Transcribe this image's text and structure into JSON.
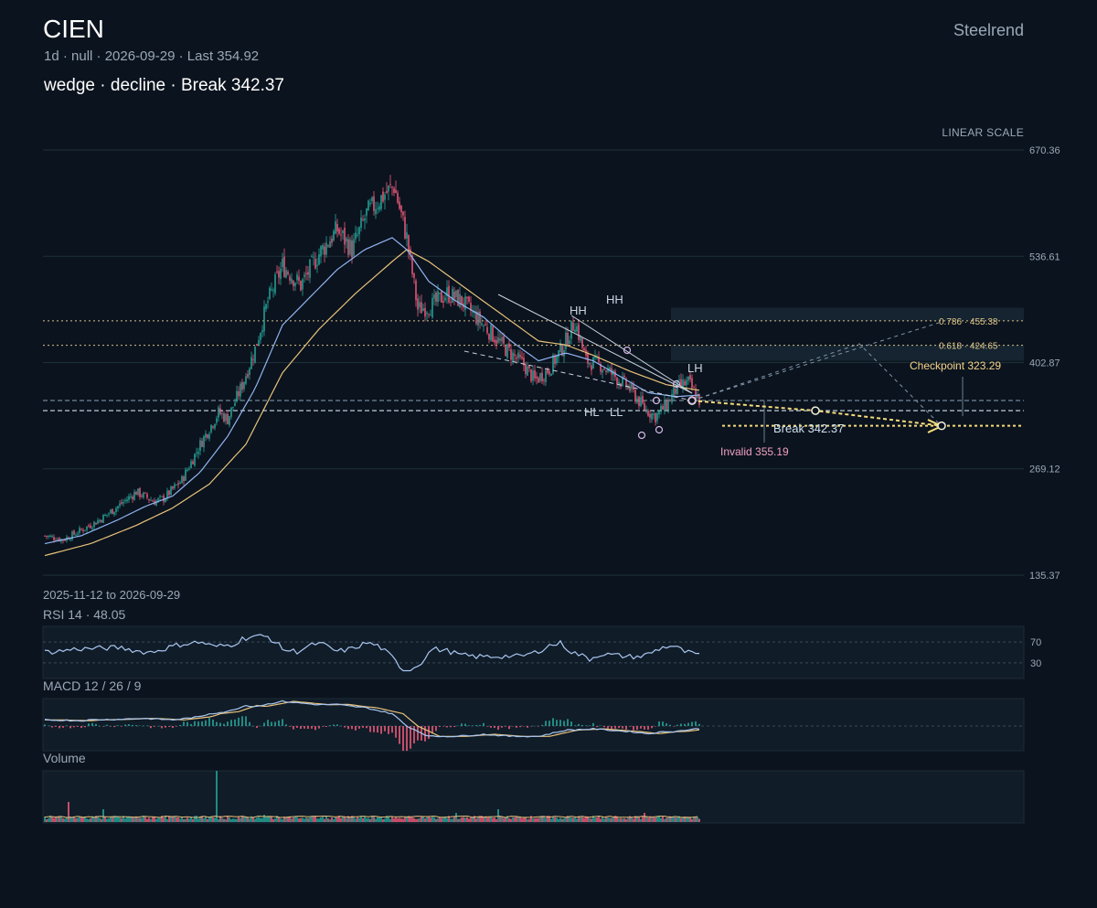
{
  "header": {
    "ticker": "CIEN",
    "subline": "1d · null · 2026-09-29 · Last 354.92",
    "headline": "wedge · decline · Break 342.37",
    "brand": "Steelrend",
    "scale_label": "LINEAR SCALE",
    "date_range": "2025-11-12 to 2026-09-29"
  },
  "colors": {
    "background": "#0b131e",
    "up": "#26a69a",
    "down": "#ef5b7a",
    "ma_fast": "#8fb4f0",
    "ma_slow": "#e8c37a",
    "projection": "#f5dc7a",
    "invalid": "#f0a0c0"
  },
  "chart_data": {
    "type": "candlestick",
    "ylim": [
      135.37,
      670.36
    ],
    "y_ticks": [
      "670.36",
      "536.61",
      "402.87",
      "269.12",
      "135.37"
    ],
    "price_path": [
      [
        0,
        185
      ],
      [
        10,
        180
      ],
      [
        20,
        192
      ],
      [
        30,
        205
      ],
      [
        40,
        222
      ],
      [
        50,
        240
      ],
      [
        60,
        228
      ],
      [
        65,
        232
      ],
      [
        75,
        255
      ],
      [
        85,
        300
      ],
      [
        95,
        340
      ],
      [
        100,
        332
      ],
      [
        108,
        375
      ],
      [
        115,
        420
      ],
      [
        122,
        480
      ],
      [
        130,
        525
      ],
      [
        140,
        500
      ],
      [
        150,
        540
      ],
      [
        160,
        570
      ],
      [
        168,
        545
      ],
      [
        176,
        590
      ],
      [
        186,
        615
      ],
      [
        191,
        625
      ],
      [
        198,
        560
      ],
      [
        204,
        470
      ],
      [
        212,
        475
      ],
      [
        220,
        490
      ],
      [
        228,
        480
      ],
      [
        236,
        460
      ],
      [
        244,
        440
      ],
      [
        252,
        420
      ],
      [
        262,
        400
      ],
      [
        268,
        380
      ],
      [
        276,
        395
      ],
      [
        284,
        425
      ],
      [
        290,
        455
      ],
      [
        296,
        405
      ],
      [
        304,
        400
      ],
      [
        312,
        385
      ],
      [
        320,
        370
      ],
      [
        328,
        345
      ],
      [
        334,
        335
      ],
      [
        340,
        350
      ],
      [
        346,
        372
      ],
      [
        352,
        378
      ],
      [
        358,
        355
      ]
    ],
    "ma_fast_path": [
      [
        0,
        175
      ],
      [
        20,
        185
      ],
      [
        40,
        205
      ],
      [
        55,
        222
      ],
      [
        70,
        235
      ],
      [
        85,
        265
      ],
      [
        100,
        310
      ],
      [
        115,
        370
      ],
      [
        130,
        450
      ],
      [
        145,
        485
      ],
      [
        160,
        520
      ],
      [
        175,
        545
      ],
      [
        190,
        560
      ],
      [
        198,
        545
      ],
      [
        210,
        505
      ],
      [
        225,
        480
      ],
      [
        240,
        460
      ],
      [
        255,
        430
      ],
      [
        270,
        405
      ],
      [
        285,
        415
      ],
      [
        300,
        405
      ],
      [
        315,
        385
      ],
      [
        330,
        365
      ],
      [
        345,
        360
      ],
      [
        358,
        362
      ]
    ],
    "ma_slow_path": [
      [
        0,
        160
      ],
      [
        25,
        175
      ],
      [
        50,
        198
      ],
      [
        70,
        220
      ],
      [
        90,
        250
      ],
      [
        110,
        300
      ],
      [
        130,
        390
      ],
      [
        150,
        445
      ],
      [
        170,
        490
      ],
      [
        190,
        530
      ],
      [
        198,
        545
      ],
      [
        210,
        530
      ],
      [
        225,
        505
      ],
      [
        240,
        480
      ],
      [
        255,
        455
      ],
      [
        270,
        430
      ],
      [
        285,
        425
      ],
      [
        300,
        412
      ],
      [
        320,
        392
      ],
      [
        340,
        375
      ],
      [
        358,
        368
      ]
    ],
    "projection_path": [
      [
        358,
        354.92
      ],
      [
        475,
        342.37
      ],
      [
        590,
        323.29
      ]
    ],
    "levels": [
      {
        "price": 455.38,
        "label": "0.786 · 455.38"
      },
      {
        "price": 424.65,
        "label": "0.618 · 424.65"
      },
      {
        "price": 355.19,
        "label": "Invalid 355.19"
      },
      {
        "price": 342.37,
        "label": "Break 342.37"
      },
      {
        "price": 323.29,
        "label": "Checkpoint 323.29"
      }
    ],
    "swing_labels": [
      {
        "bar": 262,
        "price": 455.38,
        "text": "HH"
      },
      {
        "bar": 280,
        "price": 488,
        "text": "HH"
      },
      {
        "bar": 352,
        "price": 400,
        "text": "LH"
      },
      {
        "bar": 270,
        "price": 340,
        "text": "HL"
      },
      {
        "bar": 292,
        "price": 340,
        "text": "LL"
      }
    ],
    "rsi": {
      "label": "RSI 14 · 48.05",
      "value": 48.05,
      "levels": [
        "70",
        "30"
      ]
    },
    "macd": {
      "label": "MACD 12 / 26 / 9"
    },
    "volume": {
      "label": "Volume"
    }
  }
}
